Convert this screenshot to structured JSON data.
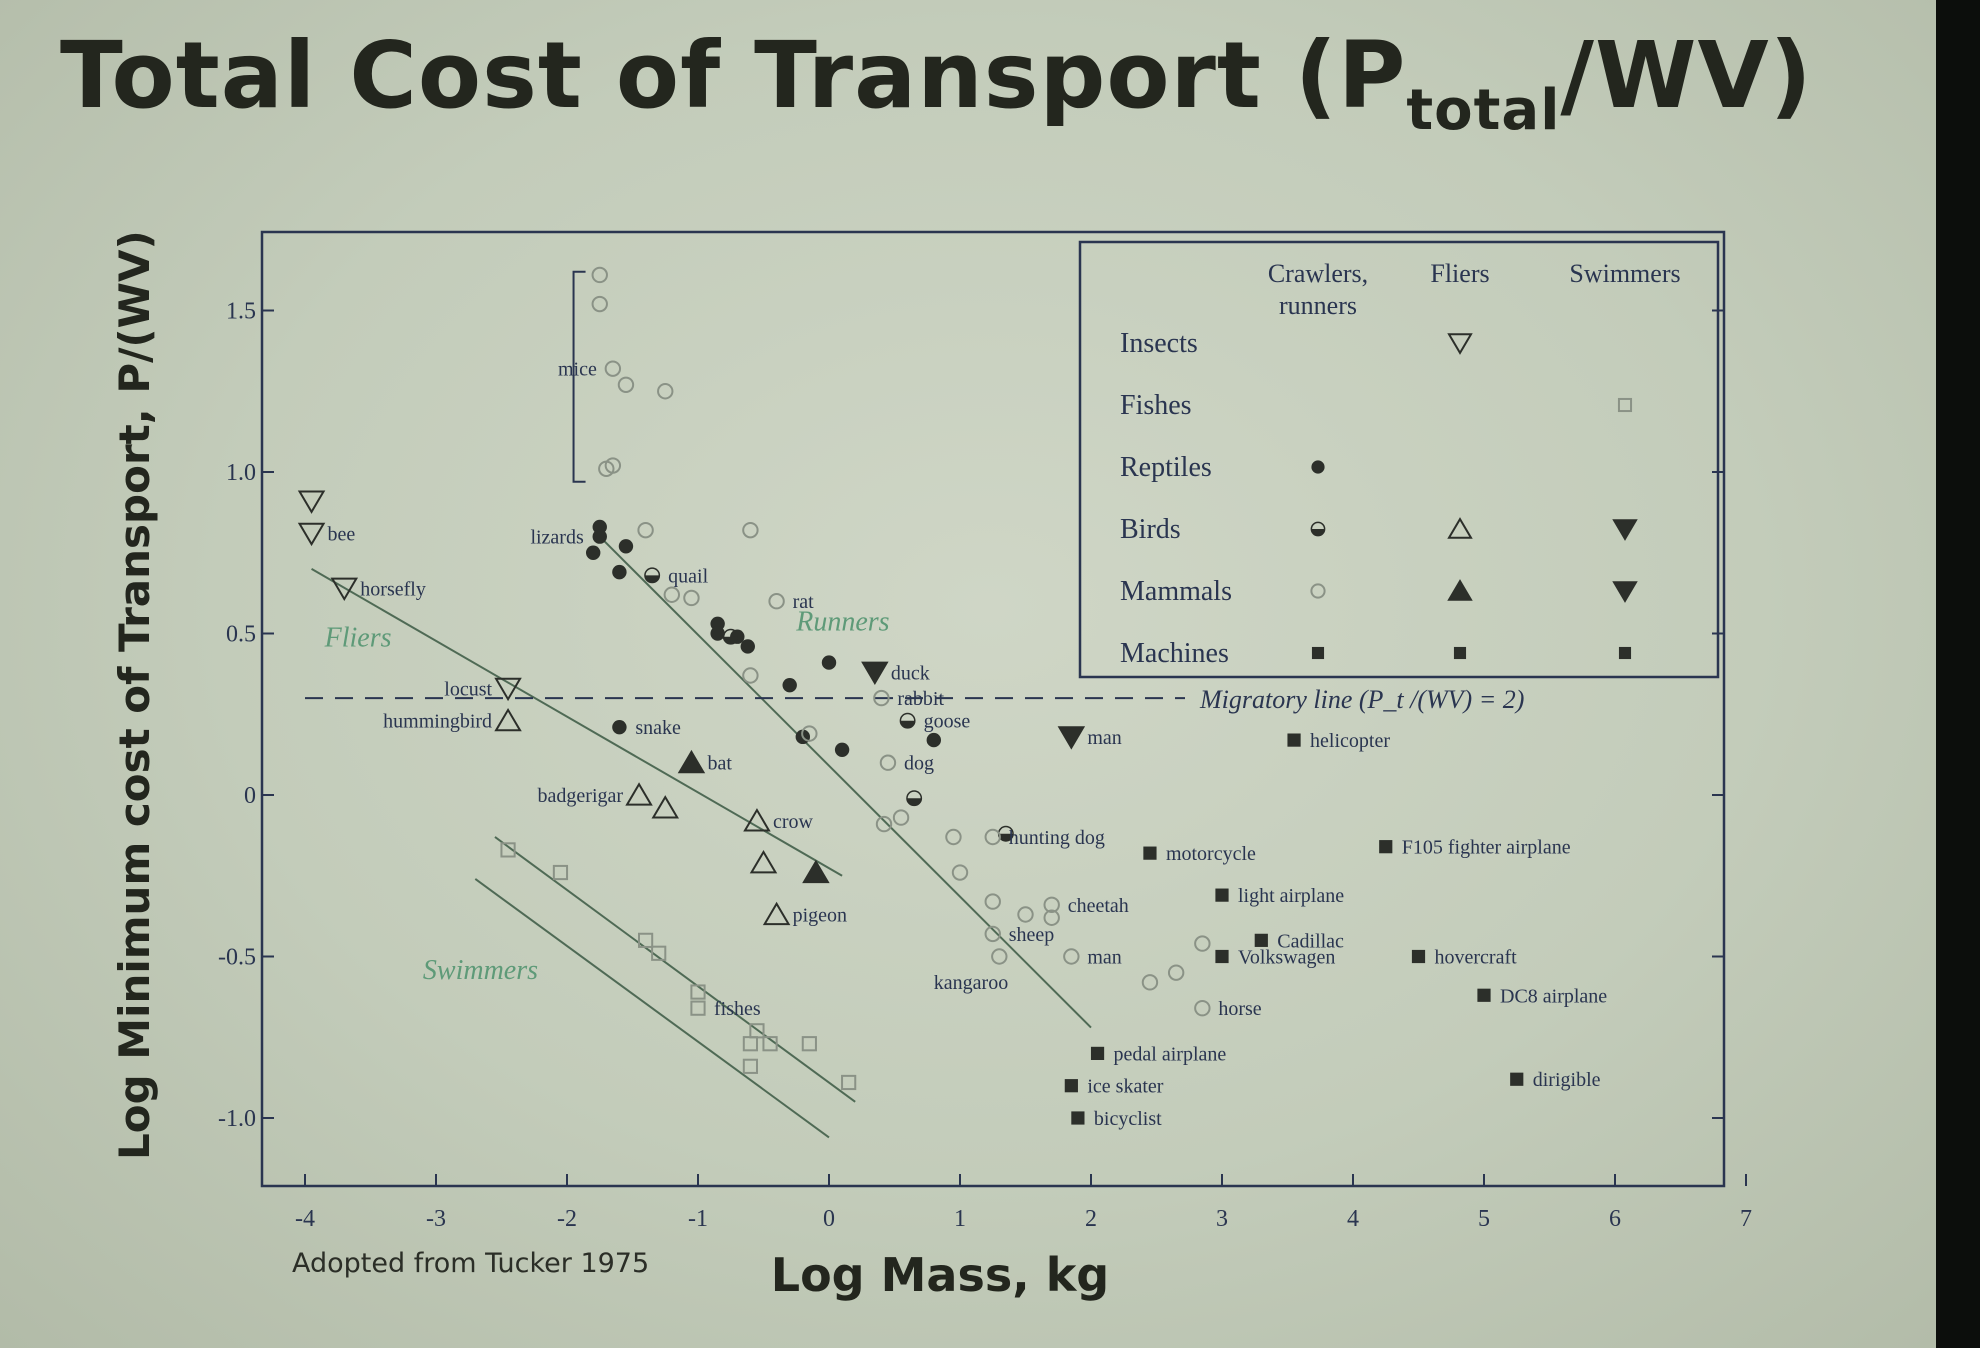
{
  "slide": {
    "title_main": "Total Cost of Transport (P",
    "title_sub": "total",
    "title_end": "/WV)",
    "source_note": "Adopted from Tucker 1975"
  },
  "colors": {
    "ink": "#2a3550",
    "marker": "#2c2f2a",
    "open_marker": "#8a9286",
    "green_label": "#5e9a78",
    "fit_line": "#4f6a55"
  },
  "chart_data": {
    "type": "scatter",
    "xlabel": "Log Mass, kg",
    "ylabel": "Log Minimum cost of Transport, P/(WV)",
    "xlim": [
      -4.25,
      7
    ],
    "ylim": [
      -1.2,
      1.7
    ],
    "x_ticks": [
      "-4",
      "-3",
      "-2",
      "-1",
      "0",
      "1",
      "2",
      "3",
      "4",
      "5",
      "6",
      "7"
    ],
    "y_ticks": [
      {
        "v": 1.5,
        "label": "1.5"
      },
      {
        "v": 1.0,
        "label": "1.0"
      },
      {
        "v": 0.5,
        "label": "0.5"
      },
      {
        "v": 0,
        "label": "0"
      },
      {
        "v": -0.5,
        "label": "-0.5"
      },
      {
        "v": -1.0,
        "label": "-1.0"
      }
    ],
    "legend": {
      "position": "top-right",
      "col_headers": [
        "Crawlers,\nrunners",
        "Fliers",
        "Swimmers"
      ],
      "rows": [
        {
          "label": "Insects",
          "cells": [
            "",
            "tri_down_open",
            ""
          ]
        },
        {
          "label": "Fishes",
          "cells": [
            "",
            "",
            "square_open"
          ]
        },
        {
          "label": "Reptiles",
          "cells": [
            "dot_filled",
            "",
            ""
          ]
        },
        {
          "label": "Birds",
          "cells": [
            "dot_half",
            "tri_up_open",
            "tri_down_filled"
          ]
        },
        {
          "label": "Mammals",
          "cells": [
            "dot_open",
            "tri_up_filled",
            "tri_down_filled"
          ]
        },
        {
          "label": "Machines",
          "cells": [
            "square_filled",
            "square_filled",
            "square_filled"
          ]
        }
      ]
    },
    "migratory_line": {
      "y": 0.3,
      "label": "Migratory line (P_t /(WV) = 2)"
    },
    "group_labels": [
      {
        "text": "Fliers",
        "x": -3.85,
        "y": 0.46
      },
      {
        "text": "Runners",
        "x": -0.25,
        "y": 0.51
      },
      {
        "text": "Swimmers",
        "x": -3.1,
        "y": -0.57
      }
    ],
    "fit_lines": [
      {
        "name": "Fliers",
        "points": [
          [
            -3.95,
            0.7
          ],
          [
            0.1,
            -0.25
          ]
        ]
      },
      {
        "name": "Runners",
        "points": [
          [
            -1.75,
            0.8
          ],
          [
            2.0,
            -0.72
          ]
        ]
      },
      {
        "name": "Swimmers upper",
        "points": [
          [
            -2.55,
            -0.13
          ],
          [
            0.2,
            -0.95
          ]
        ]
      },
      {
        "name": "Swimmers lower",
        "points": [
          [
            -2.7,
            -0.26
          ],
          [
            0.0,
            -1.06
          ]
        ]
      }
    ],
    "series": [
      {
        "name": "Insects",
        "marker": "tri_down_open",
        "points": [
          {
            "x": -3.95,
            "y": 0.91
          },
          {
            "x": -3.95,
            "y": 0.81,
            "label": "bee"
          },
          {
            "x": -3.7,
            "y": 0.64,
            "label": "horsefly"
          },
          {
            "x": -2.45,
            "y": 0.33,
            "label": "locust"
          }
        ]
      },
      {
        "name": "Fishes",
        "marker": "square_open",
        "points": [
          {
            "x": -2.45,
            "y": -0.17
          },
          {
            "x": -2.05,
            "y": -0.24
          },
          {
            "x": -1.4,
            "y": -0.45
          },
          {
            "x": -1.3,
            "y": -0.49
          },
          {
            "x": -1.0,
            "y": -0.61
          },
          {
            "x": -1.0,
            "y": -0.66,
            "label": "fishes"
          },
          {
            "x": -0.55,
            "y": -0.73
          },
          {
            "x": -0.45,
            "y": -0.77
          },
          {
            "x": -0.6,
            "y": -0.77
          },
          {
            "x": -0.6,
            "y": -0.84
          },
          {
            "x": -0.15,
            "y": -0.77
          },
          {
            "x": 0.15,
            "y": -0.89
          }
        ]
      },
      {
        "name": "Reptiles",
        "marker": "dot_filled",
        "points": [
          {
            "x": -1.75,
            "y": 0.83
          },
          {
            "x": -1.75,
            "y": 0.8,
            "label": "lizards"
          },
          {
            "x": -1.8,
            "y": 0.75
          },
          {
            "x": -1.55,
            "y": 0.77
          },
          {
            "x": -1.6,
            "y": 0.69
          },
          {
            "x": -0.85,
            "y": 0.53
          },
          {
            "x": -0.85,
            "y": 0.5
          },
          {
            "x": -0.7,
            "y": 0.49
          },
          {
            "x": -0.62,
            "y": 0.46
          },
          {
            "x": -0.3,
            "y": 0.34
          },
          {
            "x": -0.0,
            "y": 0.41
          },
          {
            "x": -1.6,
            "y": 0.21,
            "label": "snake"
          },
          {
            "x": -0.2,
            "y": 0.18
          },
          {
            "x": 0.1,
            "y": 0.14
          },
          {
            "x": 0.8,
            "y": 0.17
          }
        ]
      },
      {
        "name": "Birds (crawlers, runners)",
        "marker": "dot_half",
        "points": [
          {
            "x": -1.35,
            "y": 0.68,
            "label": "quail"
          },
          {
            "x": -0.75,
            "y": 0.49
          },
          {
            "x": 0.6,
            "y": 0.23,
            "label": "goose"
          },
          {
            "x": 0.65,
            "y": -0.01
          },
          {
            "x": 1.35,
            "y": -0.12
          }
        ]
      },
      {
        "name": "Birds (fliers)",
        "marker": "tri_up_open",
        "points": [
          {
            "x": -2.45,
            "y": 0.23,
            "label": "hummingbird"
          },
          {
            "x": -1.45,
            "y": 0.0,
            "label": "badgerigar"
          },
          {
            "x": -1.25,
            "y": -0.04
          },
          {
            "x": -0.55,
            "y": -0.08,
            "label": "crow"
          },
          {
            "x": -0.5,
            "y": -0.21
          },
          {
            "x": -0.4,
            "y": -0.37,
            "label": "pigeon"
          }
        ]
      },
      {
        "name": "Birds (swimmers)",
        "marker": "tri_down_filled",
        "points": [
          {
            "x": 0.35,
            "y": 0.38,
            "label": "duck"
          }
        ]
      },
      {
        "name": "Mammals (crawlers, runners)",
        "marker": "dot_open",
        "points": [
          {
            "x": -1.75,
            "y": 1.61
          },
          {
            "x": -1.75,
            "y": 1.52
          },
          {
            "x": -1.65,
            "y": 1.32,
            "label": "mice"
          },
          {
            "x": -1.55,
            "y": 1.27
          },
          {
            "x": -1.25,
            "y": 1.25
          },
          {
            "x": -1.7,
            "y": 1.01
          },
          {
            "x": -1.65,
            "y": 1.02
          },
          {
            "x": -1.4,
            "y": 0.82
          },
          {
            "x": -0.6,
            "y": 0.82
          },
          {
            "x": -1.2,
            "y": 0.62
          },
          {
            "x": -1.05,
            "y": 0.61
          },
          {
            "x": -0.4,
            "y": 0.6,
            "label": "rat"
          },
          {
            "x": -0.6,
            "y": 0.37
          },
          {
            "x": 0.4,
            "y": 0.3,
            "label": "rabbit"
          },
          {
            "x": -0.15,
            "y": 0.19
          },
          {
            "x": 0.45,
            "y": 0.1,
            "label": "dog"
          },
          {
            "x": 0.55,
            "y": -0.07
          },
          {
            "x": 0.42,
            "y": -0.09
          },
          {
            "x": 0.95,
            "y": -0.13
          },
          {
            "x": 1.0,
            "y": -0.24
          },
          {
            "x": 1.25,
            "y": -0.13,
            "label": "hunting dog"
          },
          {
            "x": 1.25,
            "y": -0.33
          },
          {
            "x": 1.5,
            "y": -0.37
          },
          {
            "x": 1.7,
            "y": -0.34,
            "label": "cheetah"
          },
          {
            "x": 1.7,
            "y": -0.38
          },
          {
            "x": 1.3,
            "y": -0.5
          },
          {
            "x": 1.25,
            "y": -0.43,
            "label": "sheep"
          },
          {
            "x": 1.85,
            "y": -0.5,
            "label": "man"
          },
          {
            "x": 2.45,
            "y": -0.58
          },
          {
            "x": 2.65,
            "y": -0.55
          },
          {
            "x": 2.85,
            "y": -0.46
          },
          {
            "x": 2.85,
            "y": -0.66,
            "label": "horse"
          }
        ]
      },
      {
        "name": "Mammals (fliers)",
        "marker": "tri_up_filled",
        "points": [
          {
            "x": -1.05,
            "y": 0.1,
            "label": "bat"
          },
          {
            "x": -0.1,
            "y": -0.24
          }
        ]
      },
      {
        "name": "Mammals (swimmers)",
        "marker": "tri_down_filled",
        "points": [
          {
            "x": 1.85,
            "y": 0.18,
            "label": "man"
          }
        ]
      },
      {
        "name": "Machines",
        "marker": "square_filled",
        "points": [
          {
            "x": 3.55,
            "y": 0.17,
            "label": "helicopter"
          },
          {
            "x": 2.45,
            "y": -0.18,
            "label": "motorcycle"
          },
          {
            "x": 4.25,
            "y": -0.16,
            "label": "F105 fighter airplane"
          },
          {
            "x": 3.0,
            "y": -0.31,
            "label": "light airplane"
          },
          {
            "x": 3.3,
            "y": -0.45,
            "label": "Cadillac"
          },
          {
            "x": 3.0,
            "y": -0.5,
            "label": "Volkswagen"
          },
          {
            "x": 4.5,
            "y": -0.5,
            "label": "hovercraft"
          },
          {
            "x": 5.0,
            "y": -0.62,
            "label": "DC8 airplane"
          },
          {
            "x": 2.05,
            "y": -0.8,
            "label": "pedal airplane"
          },
          {
            "x": 1.85,
            "y": -0.9,
            "label": "ice skater"
          },
          {
            "x": 5.25,
            "y": -0.88,
            "label": "dirigible"
          },
          {
            "x": 1.9,
            "y": -1.0,
            "label": "bicyclist"
          }
        ]
      }
    ],
    "annotations": [
      {
        "text": "kangaroo",
        "x": 0.8,
        "y": -0.6
      }
    ]
  }
}
